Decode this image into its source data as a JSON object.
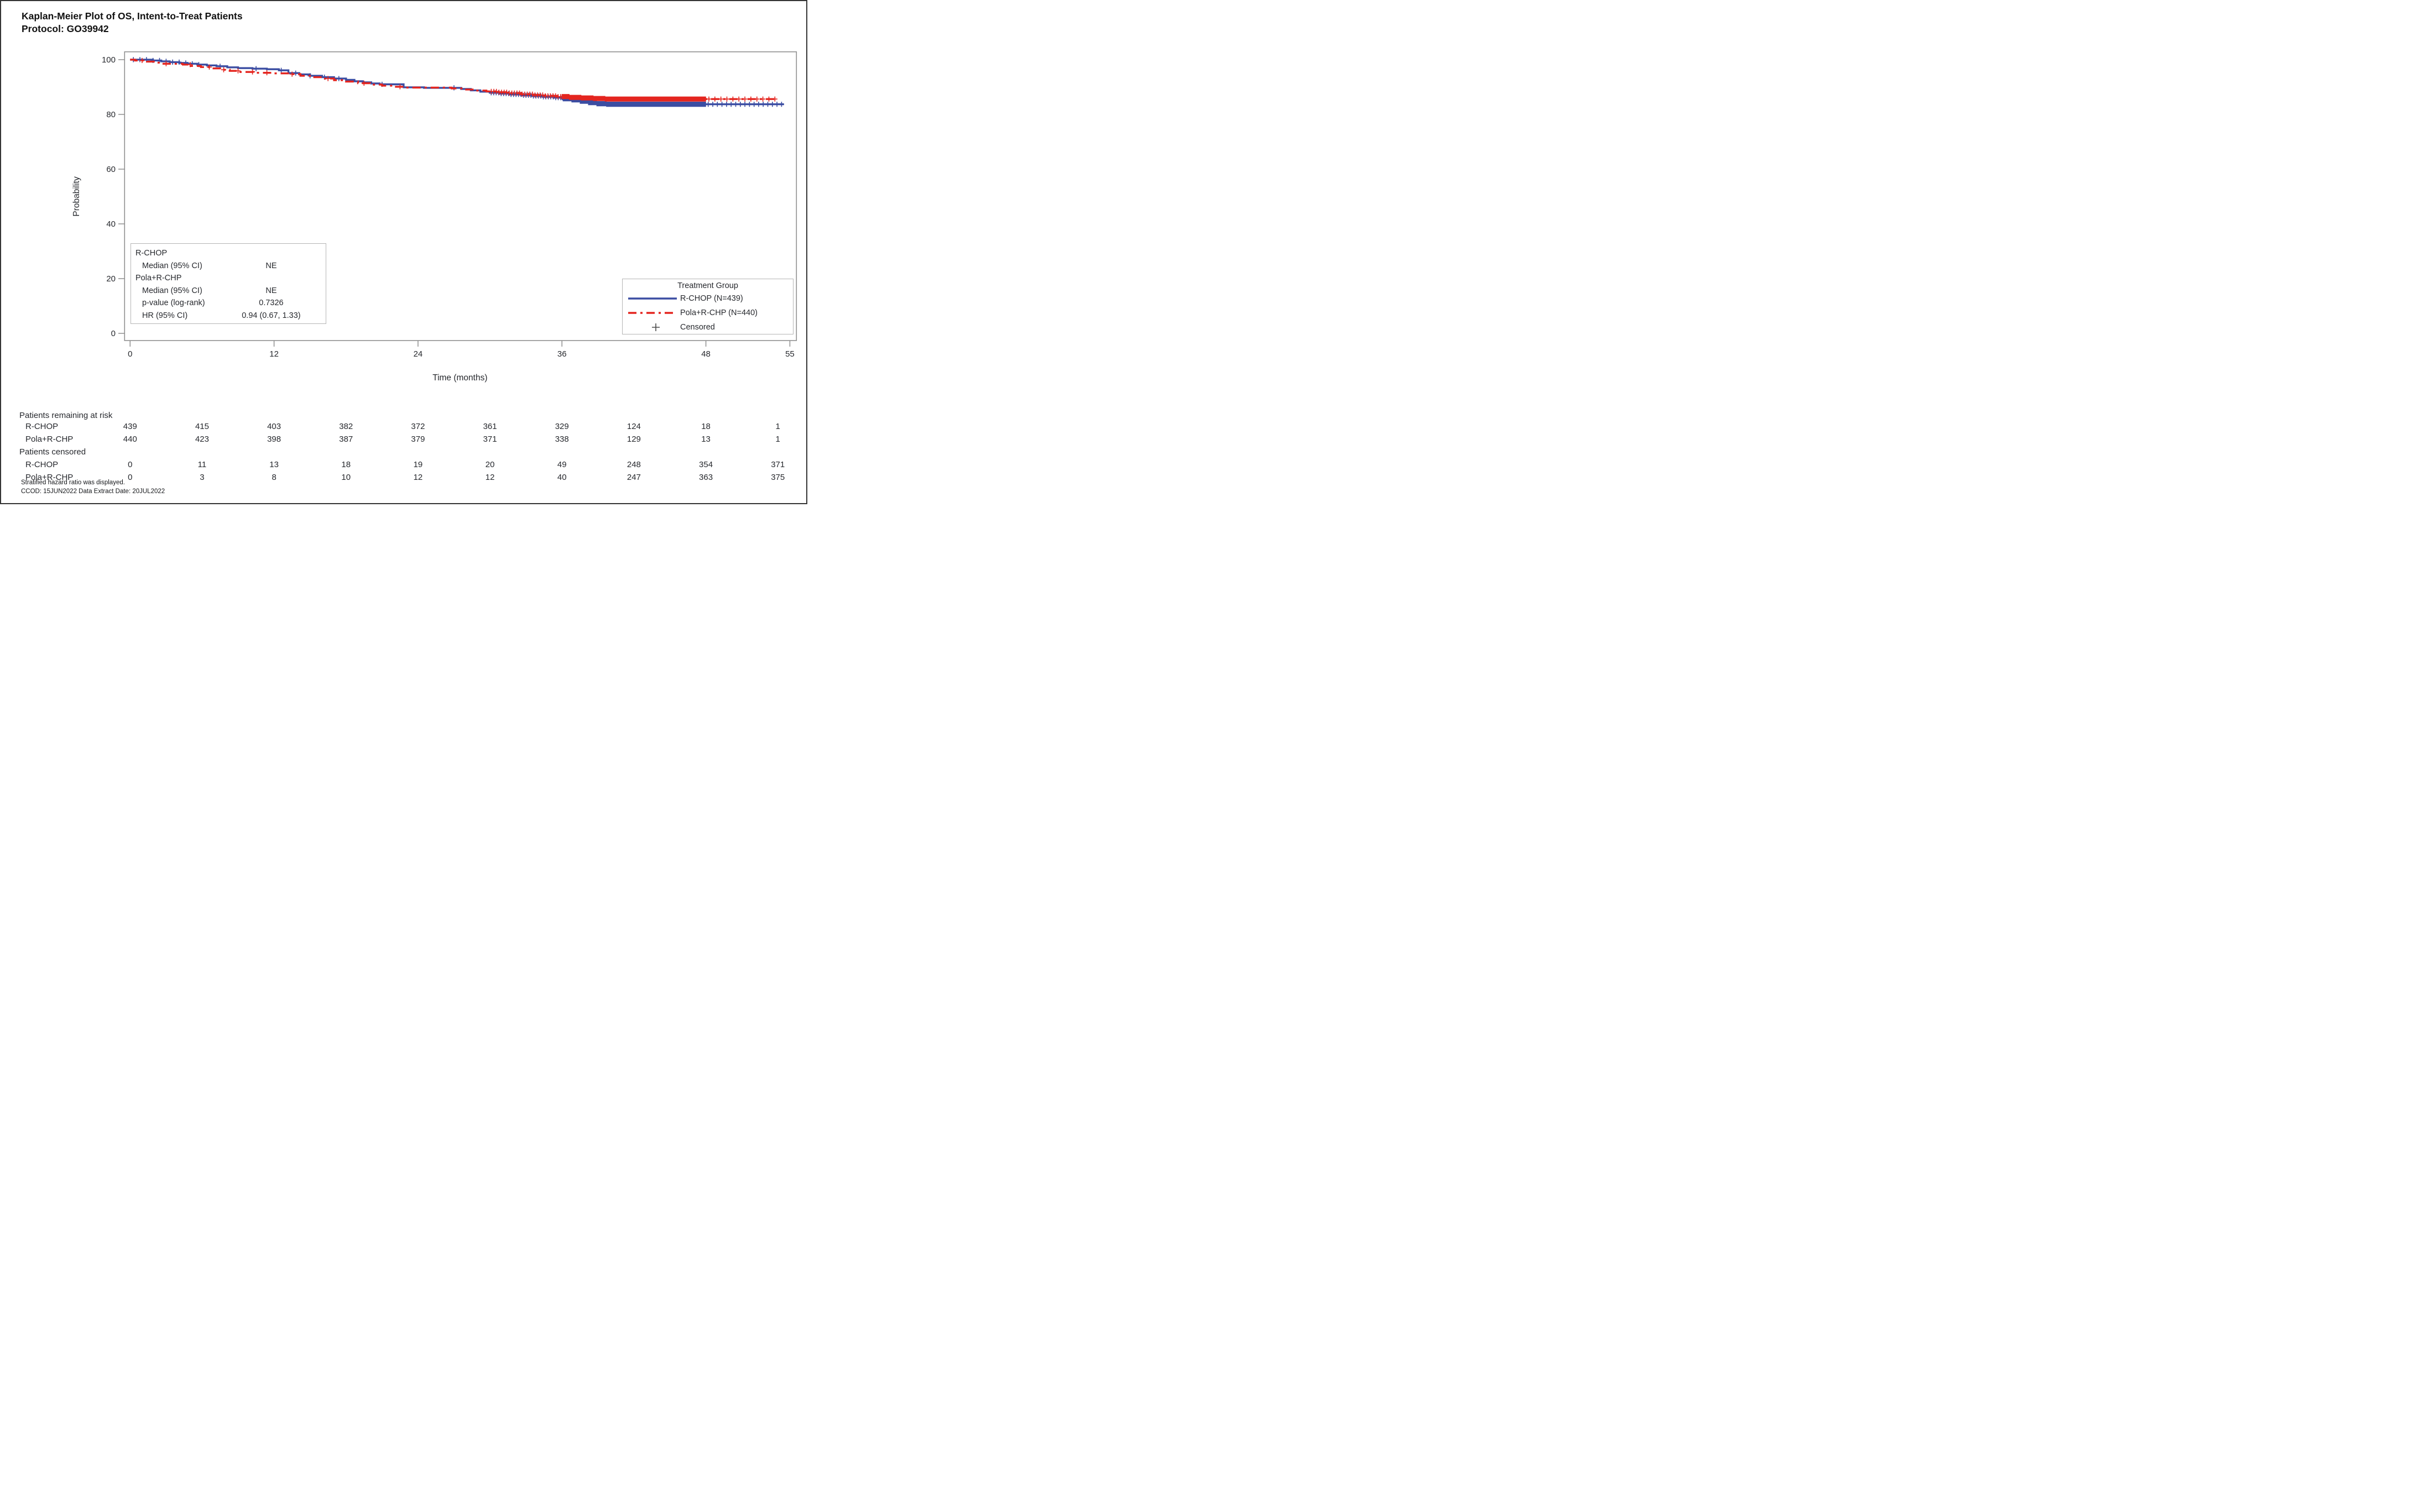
{
  "page": {
    "title_line1": "Kaplan-Meier Plot of OS, Intent-to-Treat Patients",
    "title_line2": "Protocol: GO39942"
  },
  "colors": {
    "rchop": "#3B4DA2",
    "pola": "#E4251F",
    "frame": "#8f8f8f",
    "tick_text": "#26282d",
    "censor_legend": "#4a4a4a",
    "box_border": "#b5b5b5"
  },
  "chart_data": {
    "type": "line",
    "subtype": "kaplan-meier-step",
    "title": "Kaplan-Meier Plot of OS, Intent-to-Treat Patients",
    "subtitle": "Protocol: GO39942",
    "xlabel": "Time (months)",
    "ylabel": "Probability",
    "xlim": [
      -0.5,
      55.6
    ],
    "ylim": [
      -2.7,
      103
    ],
    "xticks": [
      0,
      12,
      24,
      36,
      48,
      55
    ],
    "yticks": [
      0,
      20,
      40,
      60,
      80,
      100
    ],
    "grid": false,
    "legend_position": "inside-bottom-right",
    "series": [
      {
        "name": "R-CHOP (N=439)",
        "color_key": "rchop",
        "style": "solid",
        "step": true,
        "points": [
          [
            0,
            100
          ],
          [
            1.9,
            99.7
          ],
          [
            2.6,
            99.4
          ],
          [
            3.3,
            99.1
          ],
          [
            4.1,
            98.8
          ],
          [
            4.8,
            98.5
          ],
          [
            5.6,
            98.2
          ],
          [
            6.4,
            97.9
          ],
          [
            7.2,
            97.6
          ],
          [
            8.1,
            97.2
          ],
          [
            9.0,
            96.9
          ],
          [
            10.2,
            96.7
          ],
          [
            11.4,
            96.5
          ],
          [
            12.4,
            96.1
          ],
          [
            13.2,
            95.1
          ],
          [
            14.1,
            94.6
          ],
          [
            15.0,
            94.1
          ],
          [
            16.0,
            93.6
          ],
          [
            17.0,
            93.1
          ],
          [
            18.0,
            92.6
          ],
          [
            18.7,
            92.1
          ],
          [
            19.4,
            91.7
          ],
          [
            20.1,
            91.3
          ],
          [
            20.8,
            91.0
          ],
          [
            22.8,
            89.9
          ],
          [
            24.5,
            89.7
          ],
          [
            27.6,
            89.3
          ],
          [
            28.4,
            88.8
          ],
          [
            29.2,
            88.3
          ],
          [
            30.0,
            87.9
          ],
          [
            30.8,
            87.6
          ],
          [
            31.7,
            87.3
          ],
          [
            32.6,
            87.0
          ],
          [
            33.5,
            86.7
          ],
          [
            34.4,
            86.4
          ],
          [
            35.3,
            86.1
          ],
          [
            36.1,
            85.7
          ],
          [
            36.8,
            85.3
          ],
          [
            37.5,
            84.8
          ],
          [
            38.2,
            84.3
          ],
          [
            38.9,
            83.9
          ],
          [
            39.7,
            83.7
          ],
          [
            54.5,
            83.7
          ]
        ]
      },
      {
        "name": "Pola+R-CHP (N=440)",
        "color_key": "pola",
        "style": "dash-dot",
        "step": true,
        "points": [
          [
            0,
            100
          ],
          [
            0.4,
            99.7
          ],
          [
            1.4,
            99.3
          ],
          [
            2.1,
            98.9
          ],
          [
            2.7,
            98.5
          ],
          [
            4.4,
            98.2
          ],
          [
            5.1,
            97.7
          ],
          [
            5.9,
            97.3
          ],
          [
            6.7,
            96.8
          ],
          [
            7.5,
            96.3
          ],
          [
            8.3,
            95.9
          ],
          [
            9.1,
            95.5
          ],
          [
            10.3,
            95.2
          ],
          [
            11.8,
            95.0
          ],
          [
            13.4,
            94.7
          ],
          [
            14.2,
            94.1
          ],
          [
            15.1,
            93.6
          ],
          [
            16.0,
            93.1
          ],
          [
            17.0,
            92.5
          ],
          [
            18.0,
            92.0
          ],
          [
            19.0,
            91.4
          ],
          [
            20.0,
            90.9
          ],
          [
            21.0,
            90.5
          ],
          [
            22.0,
            90.1
          ],
          [
            22.9,
            89.8
          ],
          [
            26.8,
            89.5
          ],
          [
            27.9,
            89.1
          ],
          [
            28.8,
            88.7
          ],
          [
            29.7,
            88.4
          ],
          [
            30.6,
            88.1
          ],
          [
            31.6,
            87.8
          ],
          [
            32.6,
            87.4
          ],
          [
            33.6,
            87.1
          ],
          [
            34.6,
            86.8
          ],
          [
            35.6,
            86.5
          ],
          [
            36.6,
            86.2
          ],
          [
            37.6,
            86.0
          ],
          [
            38.6,
            85.8
          ],
          [
            39.6,
            85.6
          ],
          [
            54.0,
            85.6
          ]
        ]
      }
    ],
    "censor_marks": [
      {
        "series": 0,
        "bins": [
          [
            0,
            6,
            11
          ],
          [
            6,
            12,
            2
          ],
          [
            12,
            18,
            5
          ],
          [
            18,
            24,
            1
          ],
          [
            24,
            30,
            1
          ],
          [
            30,
            36,
            29
          ],
          [
            36,
            42,
            199
          ],
          [
            42,
            48,
            106
          ],
          [
            48,
            54.5,
            17
          ]
        ]
      },
      {
        "series": 1,
        "bins": [
          [
            0,
            6,
            3
          ],
          [
            6,
            12,
            5
          ],
          [
            12,
            18,
            2
          ],
          [
            18,
            24,
            2
          ],
          [
            24,
            30,
            0
          ],
          [
            30,
            36,
            28
          ],
          [
            36,
            42,
            207
          ],
          [
            42,
            48,
            116
          ],
          [
            48,
            54,
            12
          ]
        ]
      }
    ]
  },
  "stats_box": {
    "rows": [
      {
        "label": "R-CHOP",
        "value": ""
      },
      {
        "label": "Median (95% CI)",
        "value": "NE"
      },
      {
        "label": "Pola+R-CHP",
        "value": ""
      },
      {
        "label": "Median (95% CI)",
        "value": "NE"
      },
      {
        "label": "p-value (log-rank)",
        "value": "0.7326"
      },
      {
        "label": "HR (95% CI)",
        "value": "0.94 (0.67, 1.33)"
      }
    ]
  },
  "legend": {
    "title": "Treatment Group",
    "items": [
      {
        "label": "R-CHOP (N=439)",
        "marker": "line-solid"
      },
      {
        "label": "Pola+R-CHP (N=440)",
        "marker": "line-dashdot"
      },
      {
        "label": "Censored",
        "marker": "plus"
      }
    ]
  },
  "risk_table": {
    "columns_months": [
      0,
      6,
      12,
      18,
      24,
      30,
      36,
      42,
      48,
      54
    ],
    "sections": [
      {
        "header": "Patients remaining at risk",
        "rows": [
          {
            "label": "R-CHOP",
            "values": [
              439,
              415,
              403,
              382,
              372,
              361,
              329,
              124,
              18,
              1
            ]
          },
          {
            "label": "Pola+R-CHP",
            "values": [
              440,
              423,
              398,
              387,
              379,
              371,
              338,
              129,
              13,
              1
            ]
          }
        ]
      },
      {
        "header": "Patients censored",
        "rows": [
          {
            "label": "R-CHOP",
            "values": [
              0,
              11,
              13,
              18,
              19,
              20,
              49,
              248,
              354,
              371
            ]
          },
          {
            "label": "Pola+R-CHP",
            "values": [
              0,
              3,
              8,
              10,
              12,
              12,
              40,
              247,
              363,
              375
            ]
          }
        ]
      }
    ]
  },
  "footnotes": [
    "Stratified hazard ratio was displayed.",
    "CCOD: 15JUN2022  Data Extract Date: 20JUL2022"
  ]
}
